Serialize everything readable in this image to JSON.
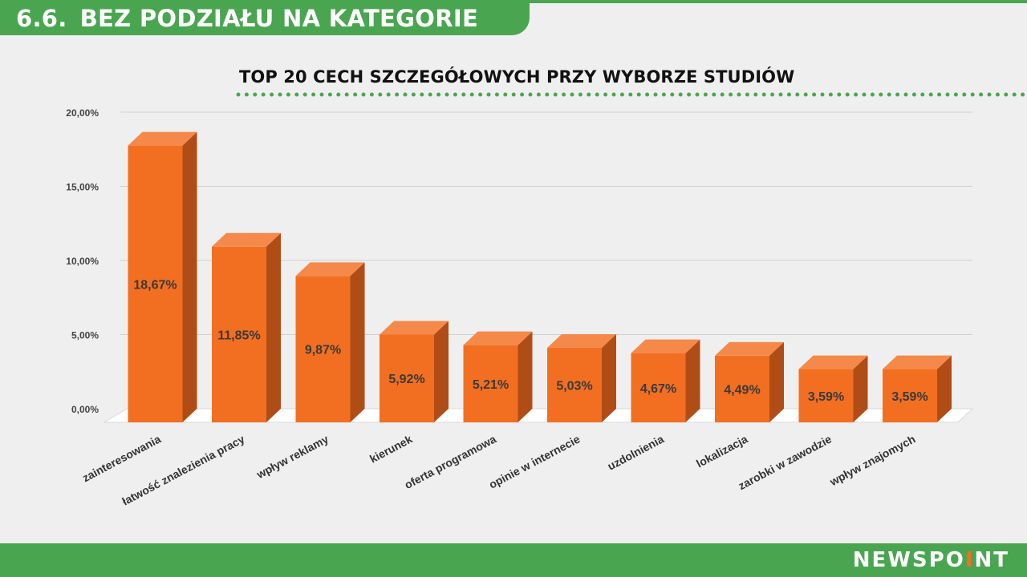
{
  "header": {
    "section_number": "6.6.",
    "section_title": "BEZ PODZIAŁU NA KATEGORIE"
  },
  "colors": {
    "brand_green": "#4aa551",
    "bar_front": "#f26f21",
    "bar_top": "#f5894a",
    "bar_side": "#b04d17",
    "accent_dot": "#f26f21"
  },
  "chart_data": {
    "type": "bar",
    "title": "TOP 20 CECH SZCZEGÓŁOWYCH PRZY WYBORZE STUDIÓW",
    "xlabel": "",
    "ylabel": "",
    "ylim": [
      0,
      20
    ],
    "yticks": [
      "0,00%",
      "5,00%",
      "10,00%",
      "15,00%",
      "20,00%"
    ],
    "grid": true,
    "categories": [
      "zainteresowania",
      "łatwość znalezienia pracy",
      "wpływ reklamy",
      "kierunek",
      "oferta programowa",
      "opinie w internecie",
      "uzdolnienia",
      "lokalizacja",
      "zarobki w zawodzie",
      "wpływ znajomych"
    ],
    "values": [
      18.67,
      11.85,
      9.87,
      5.92,
      5.21,
      5.03,
      4.67,
      4.49,
      3.59,
      3.59
    ],
    "data_labels": [
      "18,67%",
      "11,85%",
      "9,87%",
      "5,92%",
      "5,21%",
      "5,03%",
      "4,67%",
      "4,49%",
      "3,59%",
      "3,59%"
    ]
  },
  "footer": {
    "logo_text_a": "NEWSPO",
    "logo_dot_letter": "I",
    "logo_text_b": "NT"
  }
}
